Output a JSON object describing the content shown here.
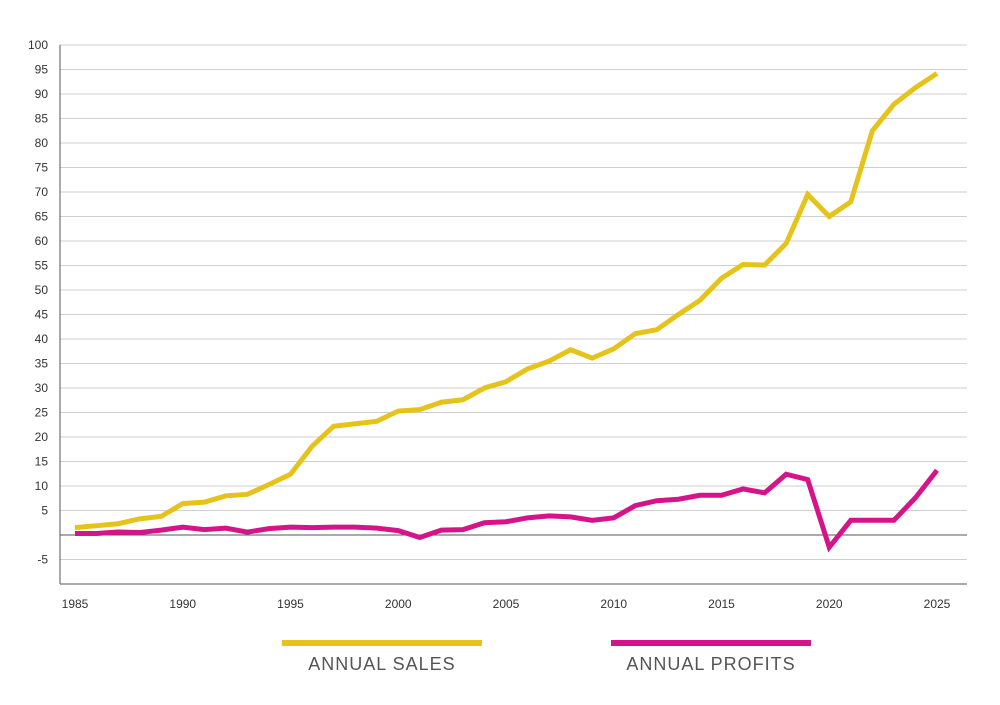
{
  "chart_data": {
    "type": "line",
    "x": [
      1985,
      1986,
      1987,
      1988,
      1989,
      1990,
      1991,
      1992,
      1993,
      1994,
      1995,
      1996,
      1997,
      1998,
      1999,
      2000,
      2001,
      2002,
      2003,
      2004,
      2005,
      2006,
      2007,
      2008,
      2009,
      2010,
      2011,
      2012,
      2013,
      2014,
      2015,
      2016,
      2017,
      2018,
      2019,
      2020,
      2021,
      2022,
      2023,
      2024,
      2025
    ],
    "series": [
      {
        "name": "ANNUAL SALES",
        "color": "#e6c31a",
        "values": [
          1.5,
          1.9,
          2.3,
          3.3,
          3.8,
          6.4,
          6.7,
          8.0,
          8.3,
          10.3,
          12.4,
          18.1,
          22.2,
          22.7,
          23.2,
          25.3,
          25.6,
          27.1,
          27.6,
          30.0,
          31.3,
          33.9,
          35.5,
          37.8,
          36.1,
          38.0,
          41.1,
          41.9,
          45.0,
          47.9,
          52.4,
          55.2,
          55.1,
          59.5,
          69.5,
          65.0,
          68.0,
          82.5,
          87.9,
          91.3,
          94.2
        ]
      },
      {
        "name": "ANNUAL PROFITS",
        "color": "#d6148a",
        "values": [
          0.3,
          0.3,
          0.6,
          0.5,
          1.0,
          1.6,
          1.1,
          1.4,
          0.6,
          1.3,
          1.6,
          1.5,
          1.6,
          1.6,
          1.4,
          0.9,
          -0.5,
          1.0,
          1.1,
          2.5,
          2.7,
          3.5,
          3.9,
          3.7,
          3.0,
          3.5,
          6.0,
          7.0,
          7.3,
          8.1,
          8.1,
          9.4,
          8.6,
          12.4,
          11.3,
          -2.5,
          3.0,
          3.0,
          3.0,
          7.6,
          13.2
        ]
      }
    ],
    "x_ticks": [
      "1985",
      "1990",
      "1995",
      "2000",
      "2005",
      "2010",
      "2015",
      "2020",
      "2025"
    ],
    "y_ticks": [
      "100",
      "95",
      "90",
      "85",
      "80",
      "75",
      "70",
      "65",
      "60",
      "55",
      "50",
      "45",
      "40",
      "35",
      "30",
      "25",
      "20",
      "15",
      "10",
      "5",
      "-5"
    ],
    "xlim": [
      1985,
      2025
    ],
    "ylim": [
      -10,
      100
    ],
    "grid": true,
    "legend_position": "bottom"
  },
  "legend": {
    "items": [
      {
        "label": "ANNUAL SALES",
        "color": "#e6c31a"
      },
      {
        "label": "ANNUAL PROFITS",
        "color": "#d6148a"
      }
    ]
  }
}
